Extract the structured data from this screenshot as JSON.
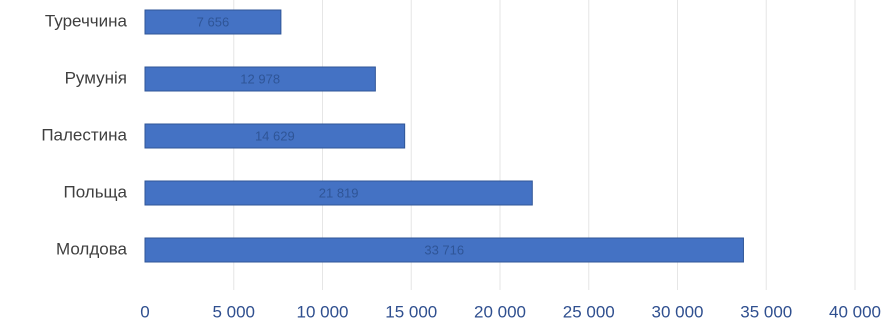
{
  "chart_data": {
    "type": "bar",
    "orientation": "horizontal",
    "title": "",
    "xlabel": "",
    "ylabel": "",
    "categories": [
      "Туреччина",
      "Румунія",
      "Палестина",
      "Польща",
      "Молдова"
    ],
    "values": [
      7656,
      12978,
      14629,
      21819,
      33716
    ],
    "data_labels": [
      "7 656",
      "12 978",
      "14 629",
      "21 819",
      "33 716"
    ],
    "xlim": [
      0,
      40000
    ],
    "x_ticks": [
      0,
      5000,
      10000,
      15000,
      20000,
      25000,
      30000,
      35000,
      40000
    ],
    "x_tick_labels": [
      "0",
      "5 000",
      "10 000",
      "15 000",
      "20 000",
      "25 000",
      "30 000",
      "35 000",
      "40 000"
    ],
    "grid": true,
    "legend": "none",
    "colors": {
      "bar_fill": "#4472c4",
      "bar_stroke": "#2f5597",
      "grid": "#e6e6e6",
      "category_text": "#3f3f3f",
      "tick_text": "#2f4f8f",
      "data_label_text": "#2f5597"
    }
  }
}
